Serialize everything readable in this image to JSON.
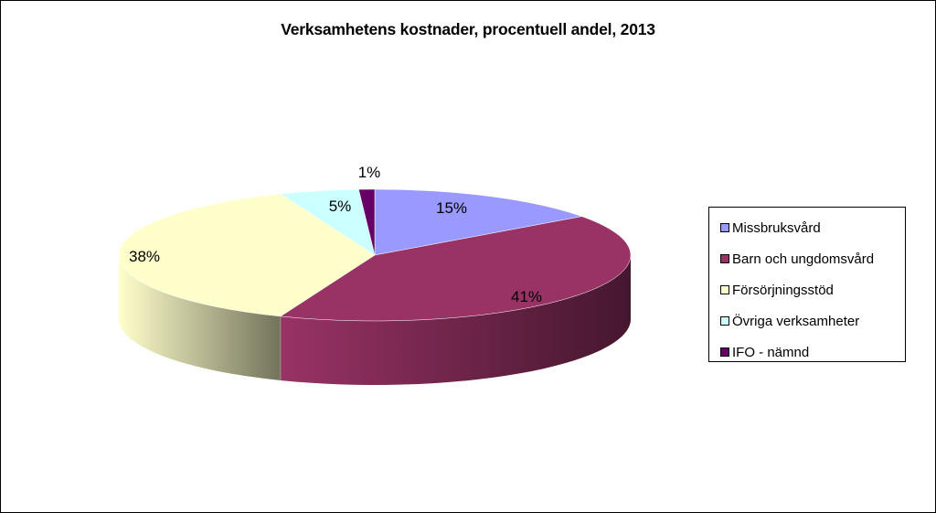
{
  "chart_data": {
    "type": "pie",
    "title": "Verksamhetens kostnader, procentuell andel, 2013",
    "three_d": true,
    "legend_position": "right",
    "categories": [
      "Missbruksvård",
      "Barn och ungdomsvård",
      "Försörjningsstöd",
      "Övriga verksamheter",
      "IFO - nämnd"
    ],
    "values": [
      15,
      41,
      38,
      5,
      1
    ],
    "value_labels": [
      "15%",
      "41%",
      "38%",
      "5%",
      "1%"
    ],
    "unit": "%",
    "colors": [
      "#9999ff",
      "#993366",
      "#ffffcc",
      "#ccffff",
      "#660066"
    ]
  }
}
